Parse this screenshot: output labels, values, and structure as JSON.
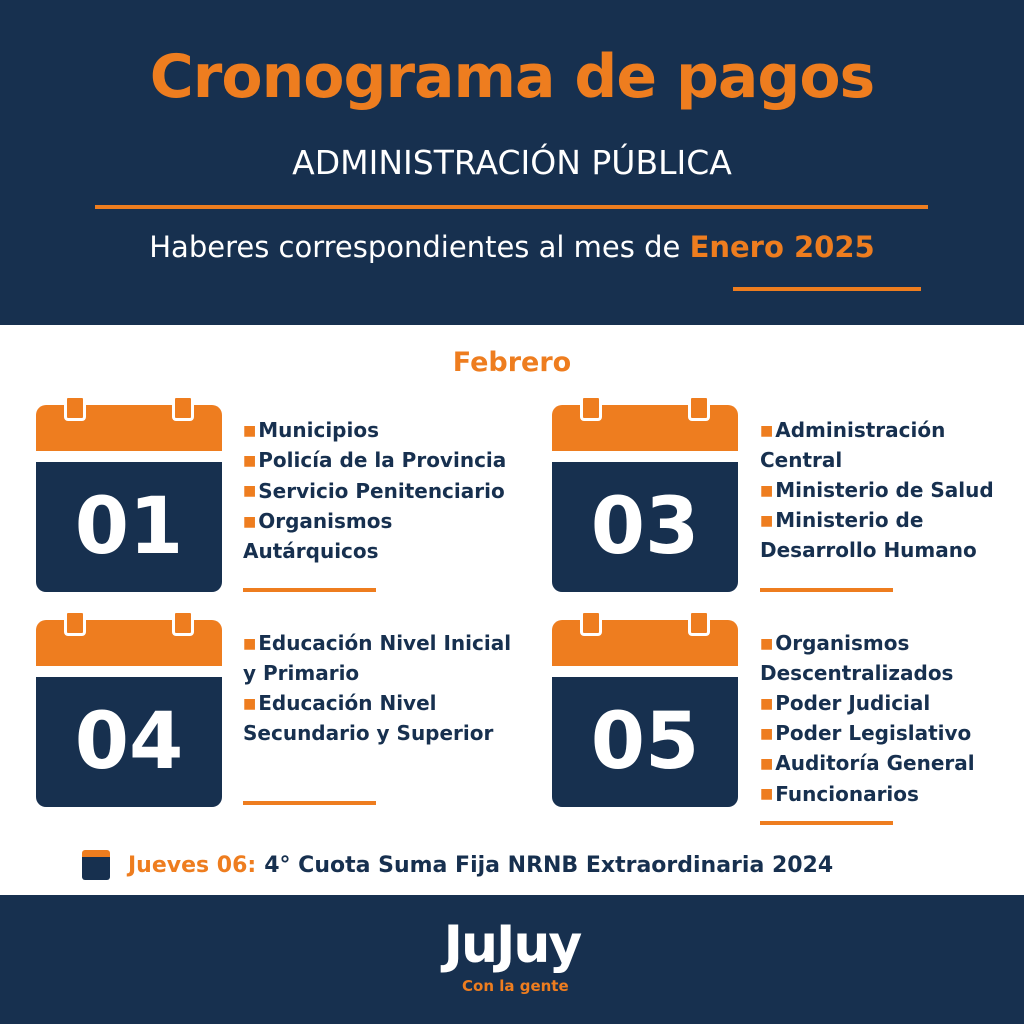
{
  "header": {
    "title": "Cronograma de pagos",
    "subtitle": "ADMINISTRACIÓN PÚBLICA",
    "haberes_prefix": "Haberes correspondientes al mes de",
    "haberes_month": "Enero 2025"
  },
  "month": "Febrero",
  "days": [
    {
      "day": "01",
      "items": [
        "Municipios",
        "Policía de la Provincia",
        "Servicio Penitenciario",
        "Organismos Autárquicos"
      ]
    },
    {
      "day": "03",
      "items": [
        "Administración Central",
        "Ministerio de Salud",
        "Ministerio de Desarrollo Humano"
      ]
    },
    {
      "day": "04",
      "items": [
        "Educación Nivel Inicial y Primario",
        "Educación Nivel Secundario y Superior"
      ]
    },
    {
      "day": "05",
      "items": [
        "Organismos Descentralizados",
        "Poder Judicial",
        "Poder Legislativo",
        "Auditoría General",
        "Funcionarios"
      ]
    }
  ],
  "note": {
    "icon": "calendar-icon",
    "label": "Jueves 06:",
    "text": "4° Cuota Suma Fija NRNB Extraordinaria 2024"
  },
  "footer": {
    "logo": "JuJuy",
    "tagline": "Con la gente"
  },
  "colors": {
    "navy": "#17304f",
    "orange": "#ee7d1f"
  }
}
